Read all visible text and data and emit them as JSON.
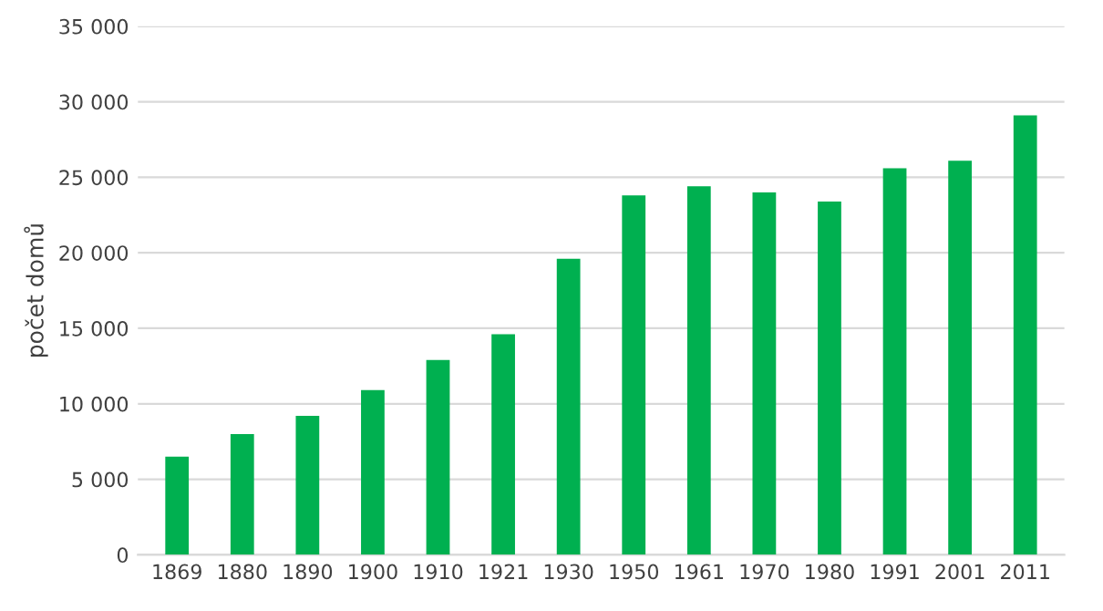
{
  "chart_data": {
    "type": "bar",
    "ylabel": "počet domů",
    "categories": [
      "1869",
      "1880",
      "1890",
      "1900",
      "1910",
      "1921",
      "1930",
      "1950",
      "1961",
      "1970",
      "1980",
      "1991",
      "2001",
      "2011"
    ],
    "values": [
      6500,
      8000,
      9200,
      10900,
      12900,
      14600,
      19600,
      23800,
      24400,
      24000,
      23400,
      25600,
      26100,
      29100
    ],
    "color": "#00b050",
    "ylim": [
      0,
      35000
    ],
    "yticks": [
      0,
      {
        "value": 5000,
        "label": "5 000"
      },
      {
        "value": 10000,
        "label": "10 000"
      },
      {
        "value": 15000,
        "label": "15 000"
      },
      {
        "value": 20000,
        "label": "20 000"
      },
      {
        "value": 25000,
        "label": "25 000"
      },
      {
        "value": 30000,
        "label": "30 000"
      },
      {
        "value": 35000,
        "label": "35 000"
      }
    ],
    "grid": "y"
  }
}
